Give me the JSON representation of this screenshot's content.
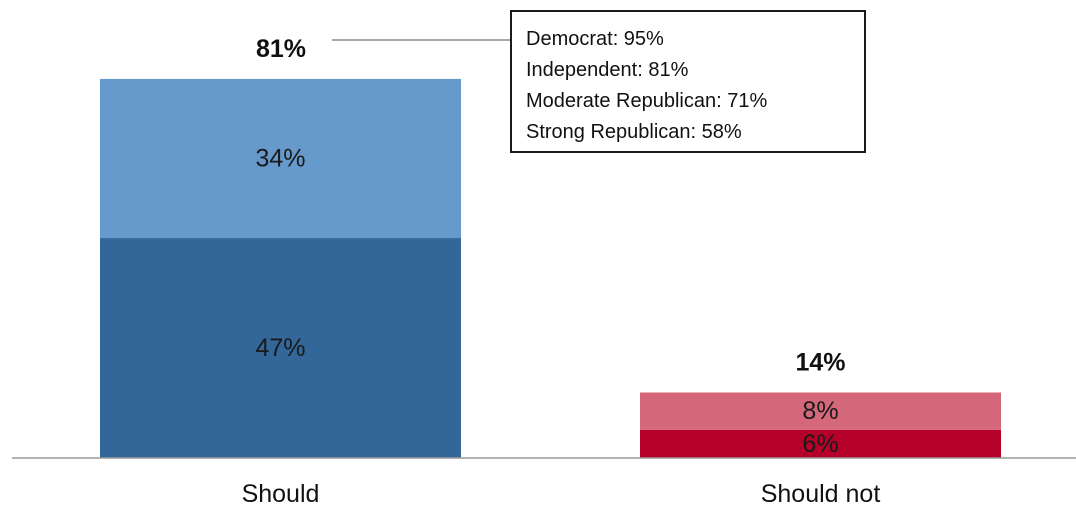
{
  "chart_data": {
    "type": "bar",
    "stacked": true,
    "categories": [
      "Should",
      "Should not"
    ],
    "bars": [
      {
        "category": "Should",
        "total_label": "81%",
        "total": 81,
        "segments": [
          {
            "value": 47,
            "label": "47%",
            "color": "#336699"
          },
          {
            "value": 34,
            "label": "34%",
            "color": "#6699cc"
          }
        ]
      },
      {
        "category": "Should not",
        "total_label": "14%",
        "total": 14,
        "segments": [
          {
            "value": 6,
            "label": "6%",
            "color": "#b5002a"
          },
          {
            "value": 8,
            "label": "8%",
            "color": "#d4687a"
          }
        ]
      }
    ],
    "ylim": [
      0,
      100
    ],
    "title": "",
    "xlabel": "",
    "ylabel": "",
    "grid": false,
    "annotation": {
      "attached_to": "Should",
      "lines": [
        "Democrat: 95%",
        "Independent: 81%",
        "Moderate Republican: 71%",
        "Strong Republican: 58%"
      ]
    }
  }
}
